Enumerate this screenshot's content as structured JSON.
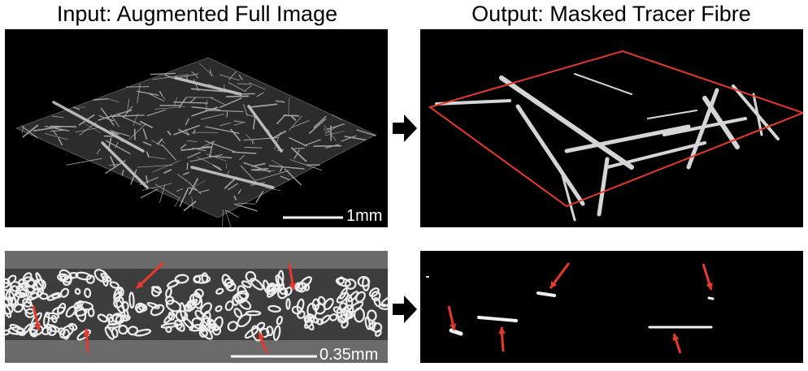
{
  "titles": {
    "input": "Input: Augmented Full Image",
    "output": "Output: Masked Tracer Fibre"
  },
  "scalebars": {
    "top": "1mm",
    "bottom": "0.35mm"
  },
  "colors": {
    "marker": "#e8392a",
    "background": "#000000",
    "fibre": "#d9d9d9",
    "slice_gray": "#6e6e6e"
  },
  "icons": {
    "transition": "right-arrow-icon",
    "marker": "red-arrow-icon"
  }
}
